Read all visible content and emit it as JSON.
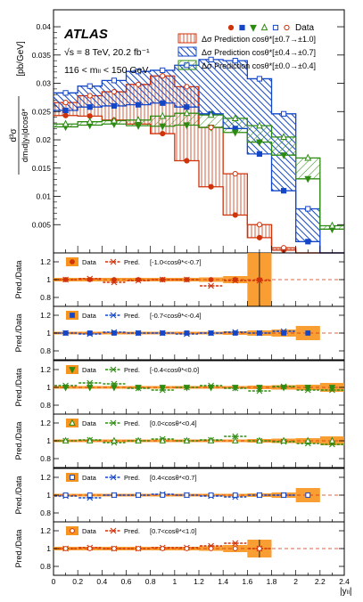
{
  "chart_data": [
    {
      "type": "line",
      "panel": "main",
      "experiment": "ATLAS",
      "energy": "√s = 8 TeV, 20.2 fb⁻¹",
      "mass": "116 < mₗₗ < 150 GeV",
      "ylabel_num": "d³σ",
      "ylabel_den": "dmₗₗd|yₗₗ|dcosθ*",
      "ylabel_unit": "[pb/GeV]",
      "xlabel": "|yₗₗ|",
      "ylim": [
        0,
        0.043
      ],
      "xlim": [
        0,
        2.4
      ],
      "yticks": [
        "0.005",
        "0.01",
        "0.015",
        "0.02",
        "0.025",
        "0.03",
        "0.035",
        "0.04"
      ],
      "ytick_values": [
        0.005,
        0.01,
        0.015,
        0.02,
        0.025,
        0.03,
        0.035,
        0.04
      ],
      "bin_edges": [
        0,
        0.2,
        0.4,
        0.6,
        0.8,
        1.0,
        1.2,
        1.4,
        1.6,
        1.8,
        2.0,
        2.2,
        2.4
      ],
      "legend": {
        "data_label": "Data",
        "pred_labels": [
          "Δσ Prediction cosθ*[±0.7→±1.0]",
          "Δσ Prediction cosθ*[±0.4→±0.7]",
          "Δσ Prediction cosθ*[±0.0→±0.4]"
        ]
      },
      "series": [
        {
          "key": "neg07_10",
          "marker": "circle",
          "filled": true,
          "color": "#d0320a",
          "values": [
            0.0243,
            0.0242,
            0.0235,
            0.0228,
            0.0211,
            0.0163,
            0.0117,
            0.0067,
            0.0027,
            0.0005,
            null,
            null
          ]
        },
        {
          "key": "neg04_07",
          "marker": "square",
          "filled": true,
          "color": "#1447c8",
          "values": [
            0.0252,
            0.0258,
            0.026,
            0.0262,
            0.0265,
            0.0258,
            0.0246,
            0.022,
            0.0175,
            0.011,
            0.002,
            null
          ]
        },
        {
          "key": "neg00_04",
          "marker": "tridown",
          "filled": true,
          "color": "#2e8b12",
          "values": [
            0.0223,
            0.0226,
            0.0228,
            0.0225,
            0.0224,
            0.0226,
            0.0222,
            0.0213,
            0.0196,
            0.0173,
            0.0131,
            0.0042
          ]
        },
        {
          "key": "pos00_04",
          "marker": "triup",
          "filled": false,
          "color": "#2e8b12",
          "values": [
            0.0228,
            0.0232,
            0.0234,
            0.0235,
            0.0242,
            0.0247,
            0.0244,
            0.0238,
            0.0225,
            0.0205,
            0.0168,
            0.0048
          ]
        },
        {
          "key": "pos04_07",
          "marker": "square",
          "filled": false,
          "color": "#1447c8",
          "values": [
            0.0283,
            0.0295,
            0.0305,
            0.0321,
            0.0323,
            0.0332,
            0.0342,
            0.034,
            0.0308,
            0.0246,
            0.0078,
            null
          ]
        },
        {
          "key": "pos07_10",
          "marker": "circle",
          "filled": false,
          "color": "#d0320a",
          "values": [
            0.0266,
            0.0278,
            0.0285,
            0.0298,
            0.0313,
            0.0294,
            0.0222,
            0.014,
            0.005,
            0.0009,
            null,
            null
          ]
        }
      ],
      "bands": [
        {
          "key": "c07",
          "color": "#d0320a",
          "hatch": "vertical",
          "lower": [
            0.0243,
            0.0242,
            0.0235,
            0.0228,
            0.0211,
            0.0163,
            0.0117,
            0.0067,
            0.0027,
            0.0005,
            0.0,
            0.0
          ],
          "upper": [
            0.0266,
            0.0278,
            0.0285,
            0.0298,
            0.0313,
            0.0294,
            0.0222,
            0.014,
            0.005,
            0.0009,
            0.0,
            0.0
          ]
        },
        {
          "key": "c04",
          "color": "#1447c8",
          "hatch": "diag",
          "lower": [
            0.0252,
            0.0258,
            0.026,
            0.0262,
            0.0265,
            0.0258,
            0.0246,
            0.022,
            0.0175,
            0.011,
            0.002,
            0.0
          ],
          "upper": [
            0.0283,
            0.0295,
            0.0305,
            0.0321,
            0.0323,
            0.0332,
            0.0342,
            0.034,
            0.0308,
            0.0246,
            0.0078,
            0.0
          ]
        },
        {
          "key": "c00",
          "color": "#2e8b12",
          "hatch": "antidiag",
          "lower": [
            0.0223,
            0.0226,
            0.0228,
            0.0225,
            0.0224,
            0.0226,
            0.0222,
            0.0213,
            0.0196,
            0.0173,
            0.0131,
            0.0042
          ],
          "upper": [
            0.0228,
            0.0232,
            0.0234,
            0.0235,
            0.0242,
            0.0247,
            0.0244,
            0.0238,
            0.0225,
            0.0205,
            0.0168,
            0.0048
          ]
        }
      ]
    },
    {
      "type": "line",
      "panel": "ratio",
      "ylabel": "Pred./Data",
      "xlabel": "|yₗₗ|",
      "xticks": [
        "0",
        "0.2",
        "0.4",
        "0.6",
        "0.8",
        "1",
        "1.2",
        "1.4",
        "1.6",
        "1.8",
        "2",
        "2.2",
        "2.4"
      ],
      "yticks": [
        "0.8",
        "1",
        "1.2"
      ],
      "ytick_values": [
        0.8,
        1.0,
        1.2
      ],
      "ylim": [
        0.7,
        1.3
      ],
      "data_label": "Data",
      "pred_label": "Pred.",
      "panels": [
        {
          "range": "[-1.0<cosθ*<-0.7]",
          "marker": "circle",
          "filled": true,
          "color": "#d0320a",
          "err": [
            0.02,
            0.02,
            0.02,
            0.02,
            0.02,
            0.02,
            0.025,
            0.04,
            0.3,
            0.0,
            0.0,
            0.0
          ],
          "pred": [
            1.0,
            1.01,
            0.97,
            0.99,
            1.0,
            1.0,
            0.93,
            0.99,
            0.99,
            null,
            null,
            null
          ]
        },
        {
          "range": "[-0.7<cosθ*<-0.4]",
          "marker": "square",
          "filled": true,
          "color": "#1447c8",
          "err": [
            0.015,
            0.015,
            0.015,
            0.015,
            0.015,
            0.015,
            0.015,
            0.02,
            0.03,
            0.04,
            0.08,
            0.0
          ],
          "pred": [
            1.0,
            0.99,
            1.01,
            1.0,
            1.0,
            0.99,
            1.0,
            1.01,
            1.0,
            1.02,
            null,
            null
          ]
        },
        {
          "range": "[-0.4<cosθ*<0.0]",
          "marker": "tridown",
          "filled": true,
          "color": "#2e8b12",
          "err": [
            0.015,
            0.015,
            0.015,
            0.015,
            0.015,
            0.015,
            0.015,
            0.015,
            0.02,
            0.025,
            0.03,
            0.05
          ],
          "pred": [
            1.02,
            1.05,
            1.04,
            0.99,
            0.97,
            1.0,
            1.02,
            0.99,
            0.96,
            1.01,
            0.97,
            0.97
          ]
        },
        {
          "range": "[0.0<cosθ*<0.4]",
          "marker": "triup",
          "filled": false,
          "color": "#2e8b12",
          "err": [
            0.015,
            0.015,
            0.015,
            0.015,
            0.015,
            0.015,
            0.015,
            0.015,
            0.02,
            0.025,
            0.03,
            0.05
          ],
          "pred": [
            1.0,
            1.01,
            0.98,
            1.0,
            1.02,
            1.0,
            1.01,
            1.05,
            1.0,
            0.99,
            0.97,
            0.96
          ]
        },
        {
          "range": "[0.4<cosθ*<0.7]",
          "marker": "square",
          "filled": false,
          "color": "#1447c8",
          "err": [
            0.015,
            0.015,
            0.015,
            0.015,
            0.015,
            0.015,
            0.015,
            0.015,
            0.02,
            0.03,
            0.08,
            0.0
          ],
          "pred": [
            0.99,
            0.97,
            1.0,
            1.0,
            1.01,
            1.0,
            0.99,
            0.98,
            1.0,
            1.0,
            null,
            null
          ]
        },
        {
          "range": "[0.7<cosθ*<1.0]",
          "marker": "circle",
          "filled": false,
          "color": "#d0320a",
          "err": [
            0.02,
            0.02,
            0.02,
            0.02,
            0.02,
            0.02,
            0.025,
            0.04,
            0.1,
            0.0,
            0.0,
            0.0
          ],
          "pred": [
            1.0,
            1.01,
            1.0,
            1.0,
            1.01,
            1.01,
            1.03,
            1.06,
            1.0,
            null,
            null,
            null
          ]
        }
      ]
    }
  ]
}
